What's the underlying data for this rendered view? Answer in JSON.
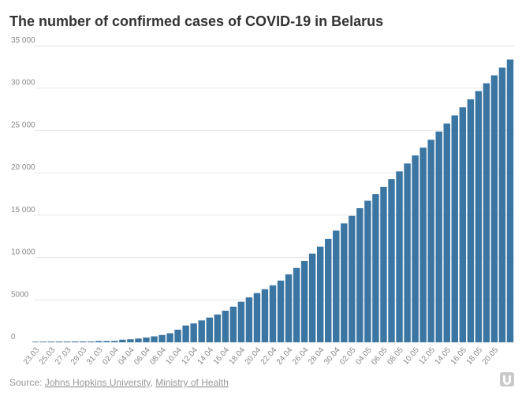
{
  "chart_data": {
    "type": "bar",
    "title": "The number of confirmed cases of COVID-19 in Belarus",
    "categories": [
      "23.03",
      null,
      "25.03",
      null,
      "27.03",
      null,
      "29.03",
      null,
      "31.03",
      null,
      "02.04",
      null,
      "04.04",
      null,
      "06.04",
      null,
      "08.04",
      null,
      "10.04",
      null,
      "12.04",
      null,
      "14.04",
      null,
      "16.04",
      null,
      "18.04",
      null,
      "20.04",
      null,
      "22.04",
      null,
      "24.04",
      null,
      "26.04",
      null,
      "28.04",
      null,
      "30.04",
      null,
      "02.05",
      null,
      "04.05",
      null,
      "06.05",
      null,
      "08.05",
      null,
      "10.05",
      null,
      "12.05",
      null,
      "14.05",
      null,
      "16.05",
      null,
      "18.05",
      null,
      "20.05",
      null,
      null
    ],
    "values": [
      70,
      76,
      81,
      86,
      86,
      94,
      94,
      94,
      152,
      152,
      163,
      304,
      351,
      440,
      562,
      700,
      861,
      1066,
      1486,
      1981,
      2226,
      2578,
      2919,
      3281,
      3728,
      4204,
      4779,
      5297,
      5807,
      6264,
      6723,
      7281,
      8022,
      8773,
      9590,
      10463,
      11289,
      12208,
      13181,
      14027,
      14917,
      15828,
      16705,
      17489,
      18350,
      19255,
      20168,
      21101,
      22052,
      22973,
      23906,
      24873,
      25825,
      26772,
      27730,
      28681,
      29650,
      30572,
      31508,
      32426,
      33371
    ],
    "color": "#3b76a3",
    "ylim": [
      0,
      35000
    ],
    "yticks": [
      0,
      5000,
      {
        "value": 10000,
        "label": "10 000"
      },
      {
        "value": 15000,
        "label": "15 000"
      },
      {
        "value": 20000,
        "label": "20 000"
      },
      {
        "value": 25000,
        "label": "25 000"
      },
      {
        "value": 30000,
        "label": "30 000"
      },
      {
        "value": 35000,
        "label": "35 000"
      }
    ],
    "grid": true,
    "source_label": "Source:",
    "source_links": [
      "Johns Hopkins University",
      "Ministry of Health"
    ],
    "source_separator": ","
  }
}
